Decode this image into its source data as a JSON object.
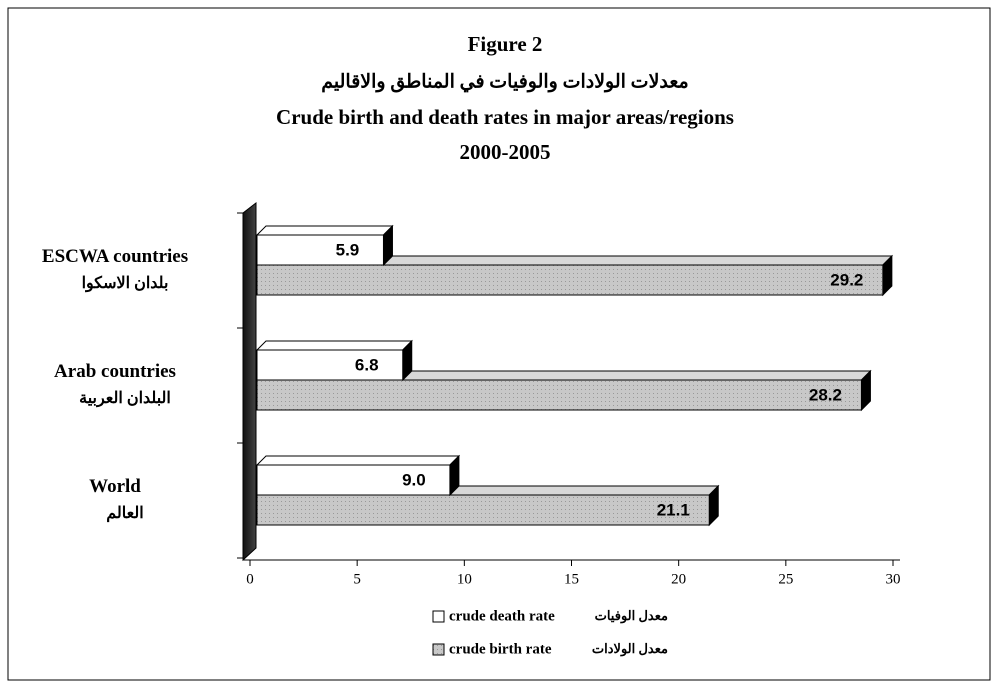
{
  "chart_data": {
    "type": "bar3d_horizontal",
    "title": "Figure 2",
    "title_ar": "معدلات الولادات والوفيات في المناطق والاقاليم",
    "subtitle": "Crude birth and death rates in  major areas/regions",
    "period": "2000-2005",
    "categories": [
      "ESCWA countries",
      "Arab countries",
      "World"
    ],
    "categories_ar": [
      "بلدان الاسكوا",
      "البلدان العربية",
      "العالم"
    ],
    "series": [
      {
        "name": "crude death rate",
        "name_ar": "معدل الوفيات",
        "color": "#ffffff",
        "values": [
          5.9,
          6.8,
          9.0
        ],
        "value_labels": [
          "5.9",
          "6.8",
          "9.0"
        ]
      },
      {
        "name": "crude birth rate",
        "name_ar": "معدل الولادات",
        "color": "#c8c8c8",
        "values": [
          29.2,
          28.2,
          21.1
        ]
      }
    ],
    "xlim": [
      0,
      30
    ],
    "xticks": [
      0,
      5,
      10,
      15,
      20,
      25,
      30
    ]
  }
}
